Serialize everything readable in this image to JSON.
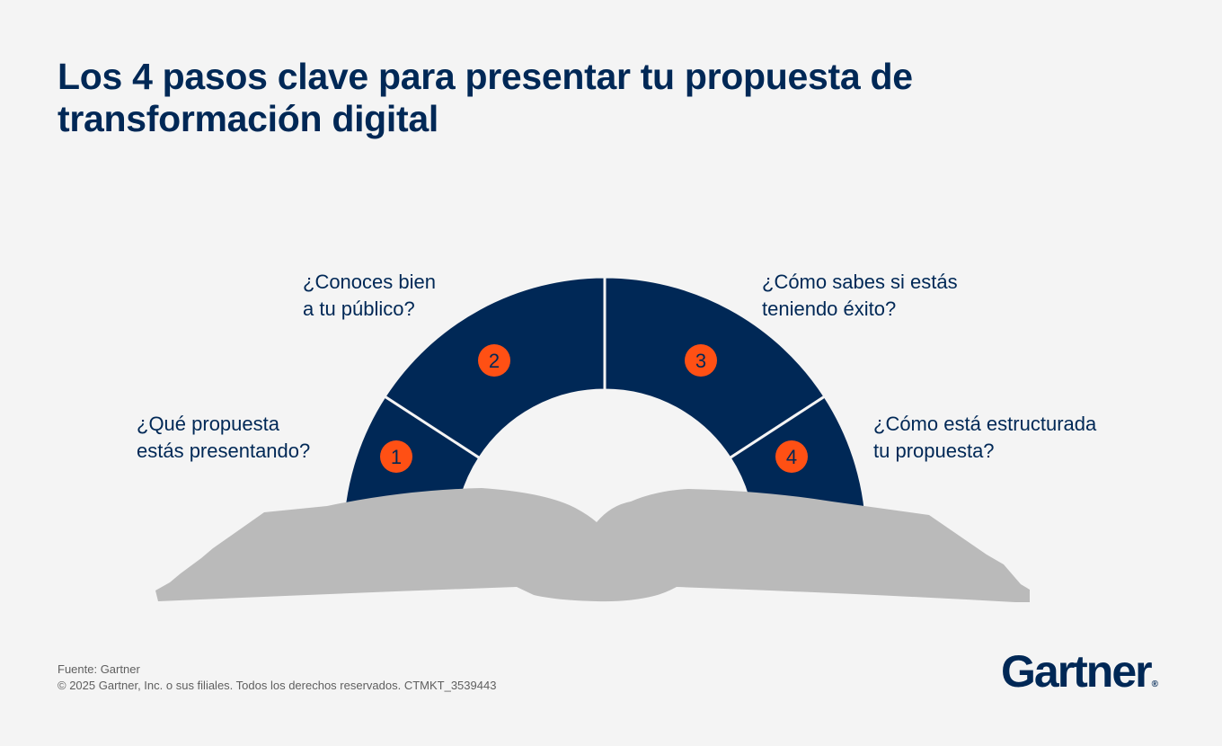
{
  "title": "Los 4 pasos clave para presentar tu propuesta de transformación digital",
  "steps": [
    {
      "number": "1",
      "question_line1": "¿Qué propuesta",
      "question_line2": "estás presentando?"
    },
    {
      "number": "2",
      "question_line1": "¿Conoces bien",
      "question_line2": "a tu público?"
    },
    {
      "number": "3",
      "question_line1": "¿Cómo sabes si estás",
      "question_line2": "teniendo éxito?"
    },
    {
      "number": "4",
      "question_line1": "¿Cómo está estructurada",
      "question_line2": "tu propuesta?"
    }
  ],
  "footer": {
    "source": "Fuente: Gartner",
    "copyright": "© 2025 Gartner, Inc. o sus filiales. Todos los derechos reservados. CTMKT_3539443"
  },
  "logo": {
    "text": "Gartner",
    "mark": "®"
  },
  "colors": {
    "navy": "#002856",
    "orange": "#ff5014",
    "book": "#bababa",
    "background": "#f4f4f4"
  }
}
